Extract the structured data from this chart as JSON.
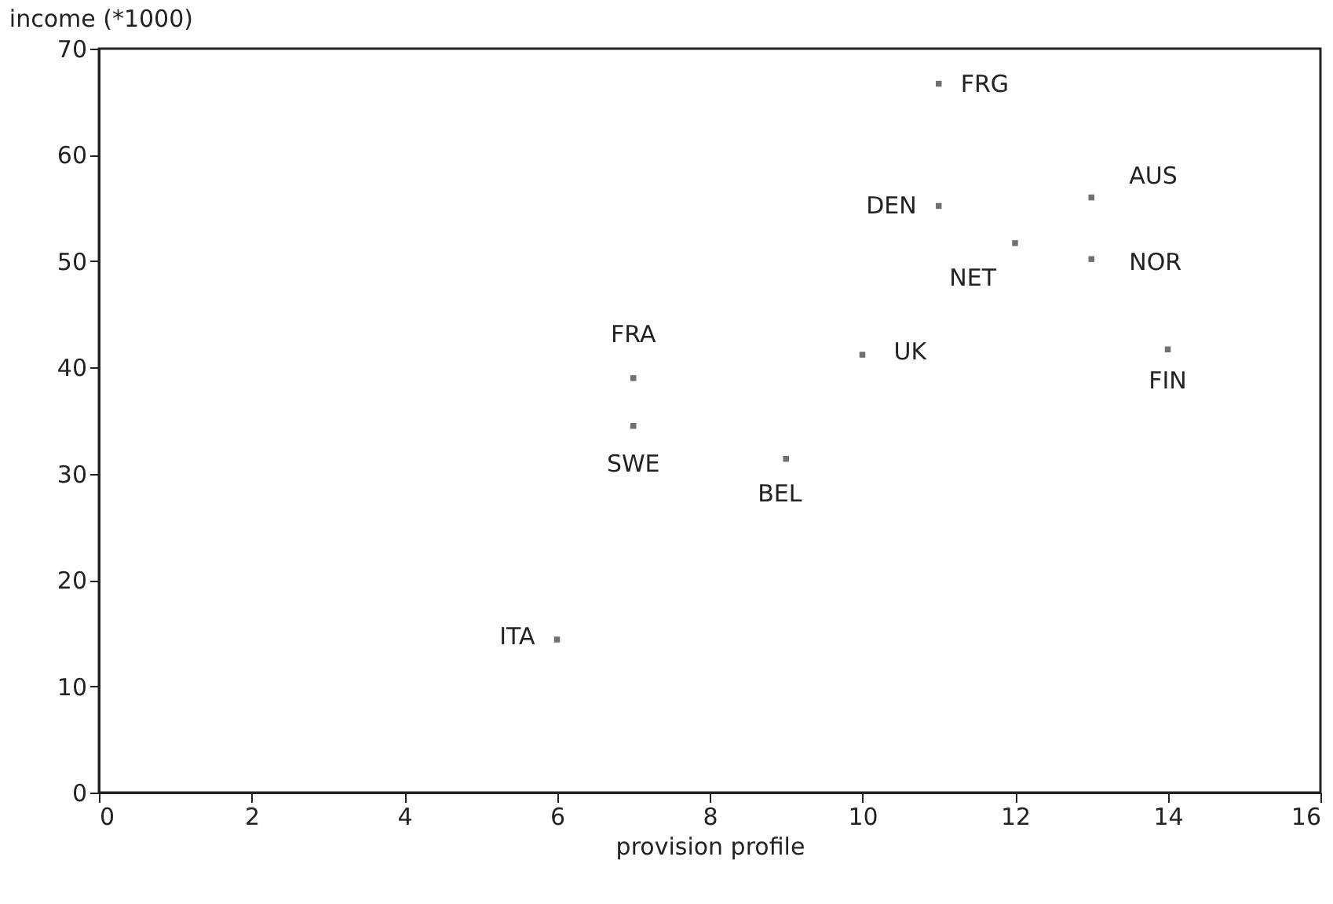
{
  "chart_data": {
    "type": "scatter",
    "xlabel": "provision profile",
    "ylabel": "income (*1000)",
    "x": [
      11,
      11,
      13,
      12,
      13,
      10,
      14,
      7,
      7,
      9,
      6
    ],
    "series": [
      {
        "color": "#333333",
        "values": [
          66.7,
          55.2,
          56,
          51.7,
          50.2,
          41.2,
          41.7,
          39,
          34.5,
          31.4,
          14.4
        ]
      }
    ],
    "xlim": [
      0,
      16
    ],
    "xticks": [
      0,
      2,
      4,
      6,
      8,
      10,
      12,
      14,
      16
    ],
    "ylim": [
      0,
      70
    ],
    "yticks": [
      0,
      10,
      20,
      30,
      40,
      50,
      60,
      70
    ],
    "grid": false,
    "marker": "square",
    "annotations": [
      {
        "text": "FRG",
        "x": 11,
        "y": 66.7
      },
      {
        "text": "DEN",
        "x": 11,
        "y": 55.2
      },
      {
        "text": "AUS",
        "x": 13,
        "y": 56
      },
      {
        "text": "NET",
        "x": 12,
        "y": 51.7
      },
      {
        "text": "NOR",
        "x": 13,
        "y": 50.2
      },
      {
        "text": "UK",
        "x": 10,
        "y": 41.2
      },
      {
        "text": "FIN",
        "x": 14,
        "y": 41.7
      },
      {
        "text": "FRA",
        "x": 7,
        "y": 39
      },
      {
        "text": "SWE",
        "x": 7,
        "y": 34.5
      },
      {
        "text": "BEL",
        "x": 9,
        "y": 31.4
      },
      {
        "text": "ITA",
        "x": 6,
        "y": 14.4
      }
    ]
  }
}
